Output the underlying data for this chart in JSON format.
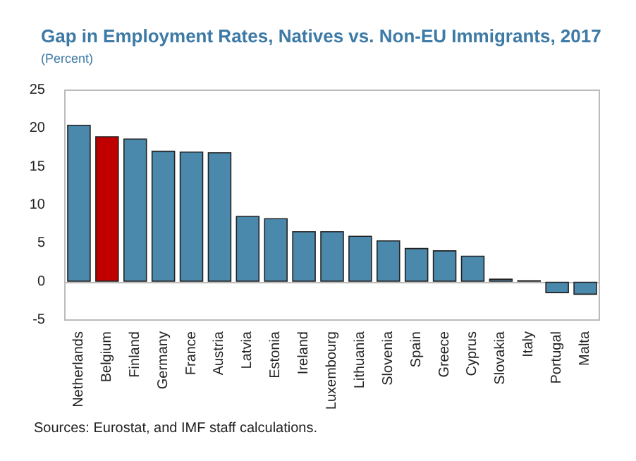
{
  "chart_data": {
    "type": "bar",
    "title": "Gap in Employment Rates, Natives vs. Non-EU Immigrants, 2017",
    "subtitle": "(Percent)",
    "categories": [
      "Netherlands",
      "Belgium",
      "Finland",
      "Germany",
      "France",
      "Austria",
      "Latvia",
      "Estonia",
      "Ireland",
      "Luxembourg",
      "Lithuania",
      "Slovenia",
      "Spain",
      "Greece",
      "Cyprus",
      "Slovakia",
      "Italy",
      "Portugal",
      "Malta"
    ],
    "values": [
      20.5,
      19.0,
      18.7,
      17.1,
      17.0,
      16.9,
      8.6,
      8.3,
      6.6,
      6.6,
      6.0,
      5.4,
      4.4,
      4.1,
      3.4,
      0.4,
      0.2,
      -1.5,
      -1.7
    ],
    "colors": [
      "#4a89ac",
      "#c00000",
      "#4a89ac",
      "#4a89ac",
      "#4a89ac",
      "#4a89ac",
      "#4a89ac",
      "#4a89ac",
      "#4a89ac",
      "#4a89ac",
      "#4a89ac",
      "#4a89ac",
      "#4a89ac",
      "#4a89ac",
      "#4a89ac",
      "#4a89ac",
      "#4a89ac",
      "#4a89ac",
      "#4a89ac"
    ],
    "ylim": [
      -5,
      25
    ],
    "yticks": [
      -5,
      0,
      5,
      10,
      15,
      20,
      25
    ],
    "annotations": [
      "Sources: Eurostat, and IMF staff calculations."
    ]
  }
}
